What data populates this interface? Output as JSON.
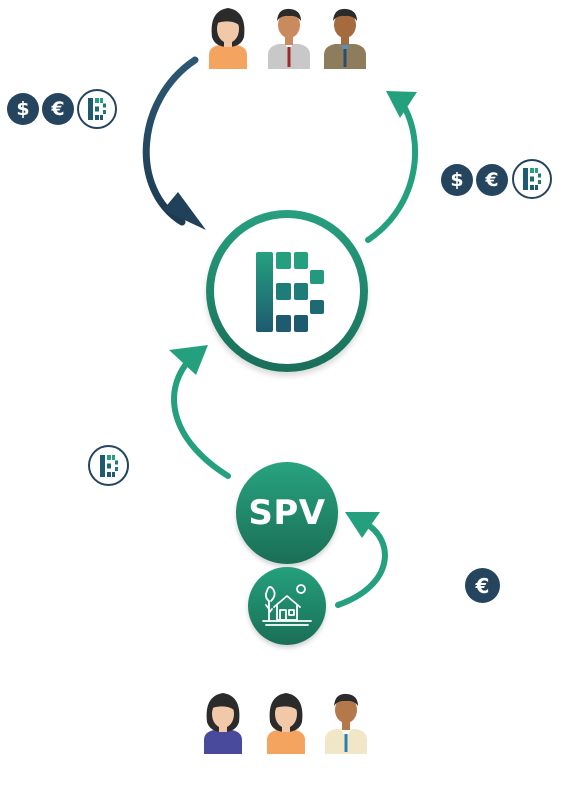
{
  "hub": {
    "icon": "b-logo-icon"
  },
  "spv": {
    "label": "SPV",
    "icon": "house-icon"
  },
  "currency": {
    "dollar": "$",
    "euro": "€"
  },
  "colors": {
    "navy": "#25455f",
    "green": "#25a07f",
    "green_dark": "#1a6e56",
    "skin": "#f2c9a8",
    "skin_dark": "#c98b5e",
    "hair_dark": "#2b2b2b",
    "shirt_orange": "#f4a45f",
    "shirt_grey": "#c8c8c8",
    "shirt_olive": "#8e7d5c",
    "shirt_blue": "#4a4a9c",
    "shirt_cream": "#f1e6c6"
  },
  "top_investors": [
    "woman-investor-icon",
    "man-investor-icon",
    "man-investor-icon"
  ],
  "bottom_investors": [
    "woman-investor-icon",
    "woman-investor-icon",
    "man-investor-icon"
  ]
}
